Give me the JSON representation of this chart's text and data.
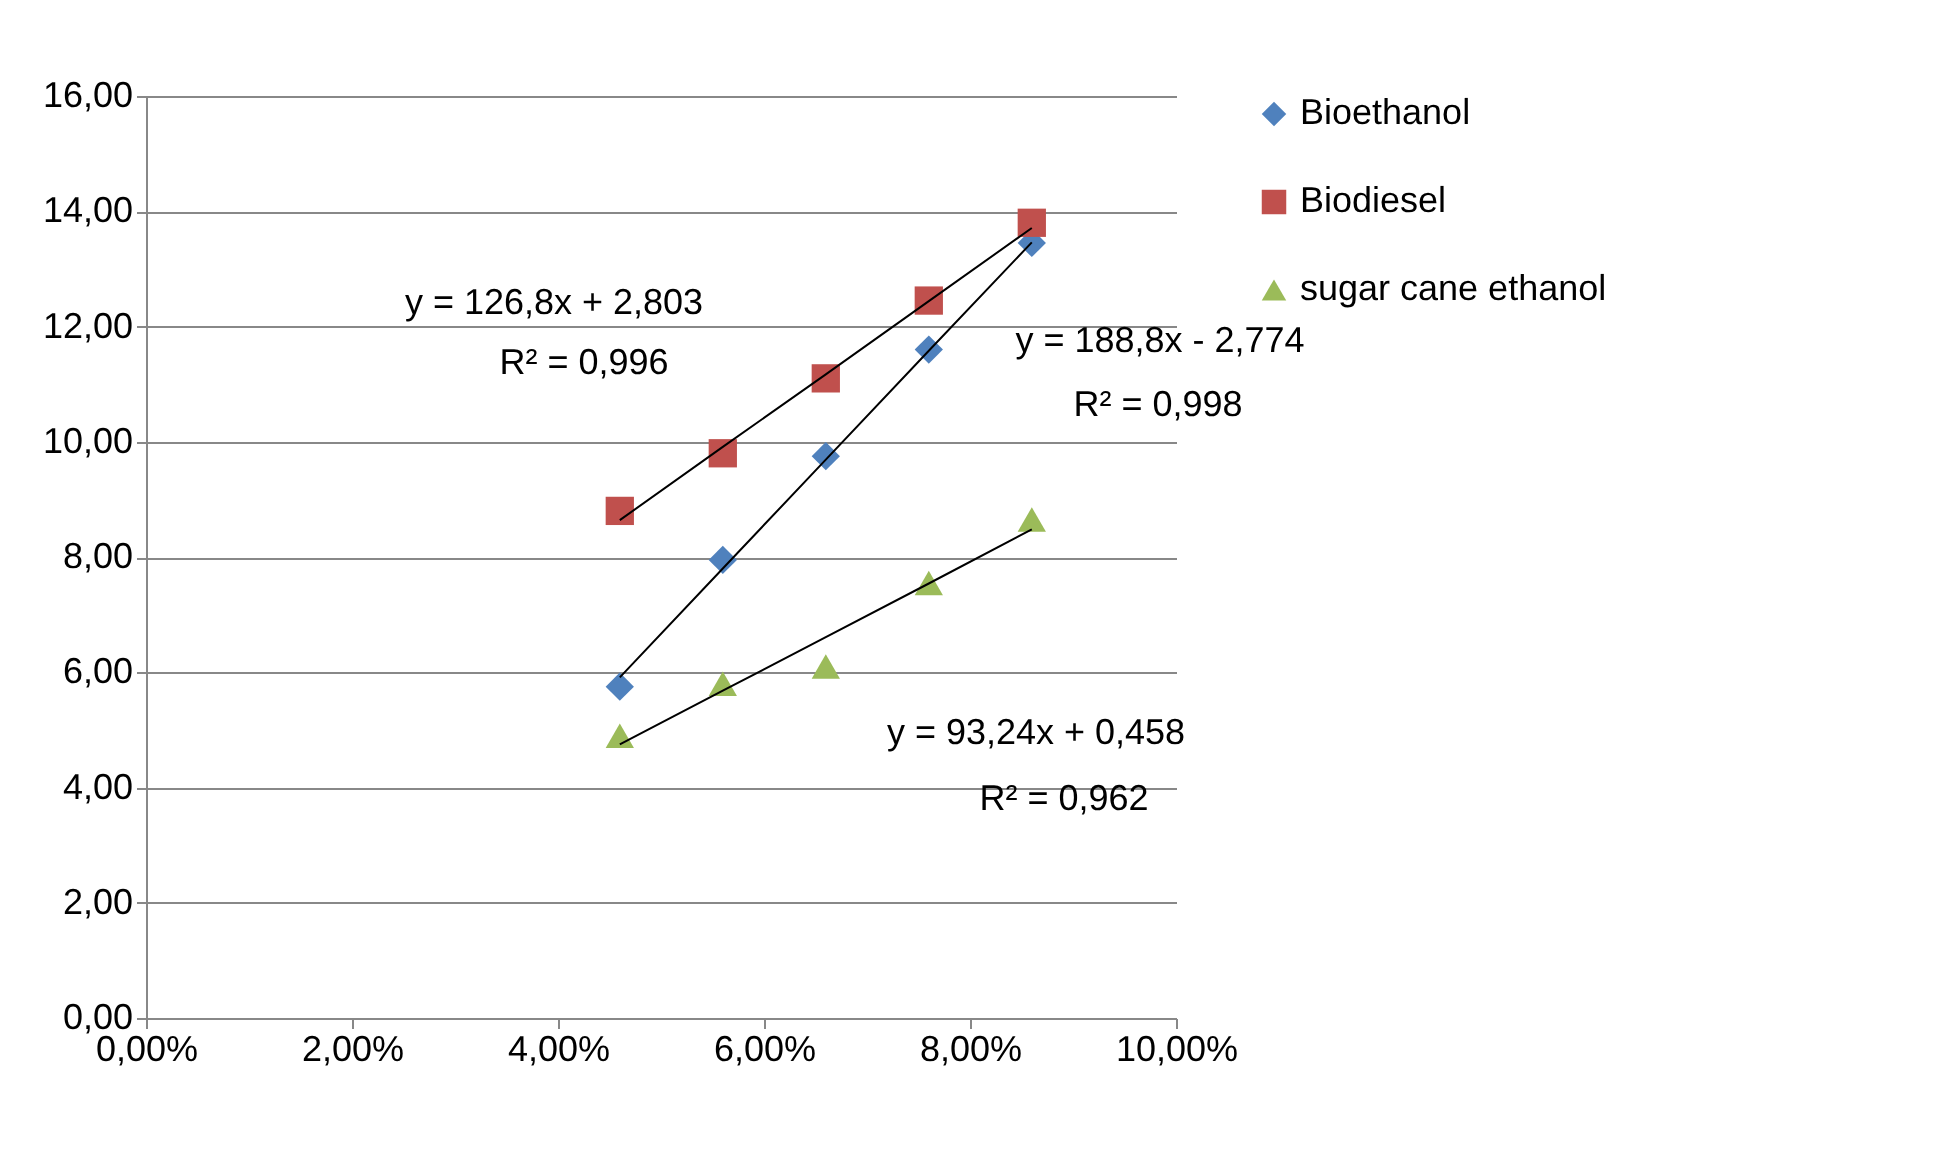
{
  "chart_data": {
    "type": "scatter",
    "x": [
      4.6,
      5.6,
      6.6,
      7.6,
      8.6
    ],
    "series": [
      {
        "name": "Bioethanol",
        "color": "#4f81bd",
        "marker": "diamond",
        "values": [
          5.75,
          7.95,
          9.75,
          11.6,
          13.45
        ]
      },
      {
        "name": "Biodiesel",
        "color": "#c0504d",
        "marker": "square",
        "values": [
          8.8,
          9.8,
          11.1,
          12.45,
          13.8
        ]
      },
      {
        "name": "sugar cane ethanol",
        "color": "#9bbb59",
        "marker": "triangle",
        "values": [
          4.9,
          5.8,
          6.1,
          7.55,
          8.65
        ]
      },
      {
        "type": "line",
        "color": "#000000",
        "values": [
          5.91,
          7.8,
          9.69,
          11.58,
          13.46
        ]
      },
      {
        "type": "line",
        "color": "#000000",
        "values": [
          8.64,
          9.91,
          11.17,
          12.44,
          13.71
        ]
      },
      {
        "type": "line",
        "color": "#000000",
        "values": [
          4.75,
          5.68,
          6.61,
          7.54,
          8.48
        ]
      }
    ],
    "annotations": [
      "y = 126,8x + 2,803",
      "R² = 0,996",
      "y = 188,8x - 2,774",
      "R² = 0,998",
      "y = 93,24x + 0,458",
      "R² = 0,962"
    ],
    "xlim": [
      0,
      10
    ],
    "xticks": [
      {
        "value": 0,
        "label": "0,00%"
      },
      {
        "value": 2,
        "label": "2,00%"
      },
      {
        "value": 4,
        "label": "4,00%"
      },
      {
        "value": 6,
        "label": "6,00%"
      },
      {
        "value": 8,
        "label": "8,00%"
      },
      {
        "value": 10,
        "label": "10,00%"
      }
    ],
    "ylim": [
      0,
      16
    ],
    "yticks": [
      {
        "value": 0,
        "label": "0,00"
      },
      {
        "value": 2,
        "label": "2,00"
      },
      {
        "value": 4,
        "label": "4,00"
      },
      {
        "value": 6,
        "label": "6,00"
      },
      {
        "value": 8,
        "label": "8,00"
      },
      {
        "value": 10,
        "label": "10,00"
      },
      {
        "value": 12,
        "label": "12,00"
      },
      {
        "value": 14,
        "label": "14,00"
      },
      {
        "value": 16,
        "label": "16,00"
      }
    ],
    "grid": "y",
    "legend": "right"
  }
}
